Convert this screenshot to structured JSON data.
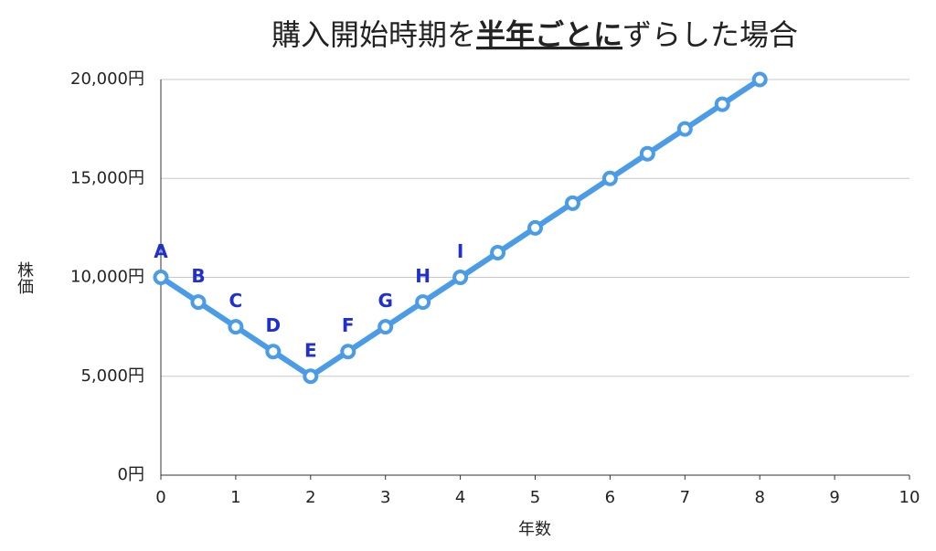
{
  "chart_data": {
    "type": "line",
    "title": [
      "購入開始時期を",
      "半年ごとに",
      "ずらした場合"
    ],
    "xlabel": "年数",
    "ylabel": "株価",
    "x": [
      0,
      0.5,
      1,
      1.5,
      2,
      2.5,
      3,
      3.5,
      4,
      4.5,
      5,
      5.5,
      6,
      6.5,
      7,
      7.5,
      8
    ],
    "series": [
      {
        "color": "#4a9be8",
        "values": [
          10000,
          8750,
          7500,
          6250,
          5000,
          6250,
          7500,
          8750,
          10000,
          11250,
          12500,
          13750,
          15000,
          16250,
          17500,
          18750,
          20000
        ],
        "point_labels": [
          "A",
          "B",
          "C",
          "D",
          "E",
          "F",
          "G",
          "H",
          "I",
          null,
          null,
          null,
          null,
          null,
          null,
          null,
          null
        ]
      }
    ],
    "xlim": [
      0,
      10
    ],
    "xticks": [
      0,
      1,
      2,
      3,
      4,
      5,
      6,
      7,
      8,
      9,
      10
    ],
    "ylim": [
      0,
      20000
    ],
    "yticks": [
      {
        "value": 0,
        "label": "0円"
      },
      {
        "value": 5000,
        "label": "5,000円"
      },
      {
        "value": 10000,
        "label": "10,000円"
      },
      {
        "value": 15000,
        "label": "15,000円"
      },
      {
        "value": 20000,
        "label": "20,000円"
      }
    ],
    "grid": true,
    "label_color": "#1f2fd0"
  }
}
